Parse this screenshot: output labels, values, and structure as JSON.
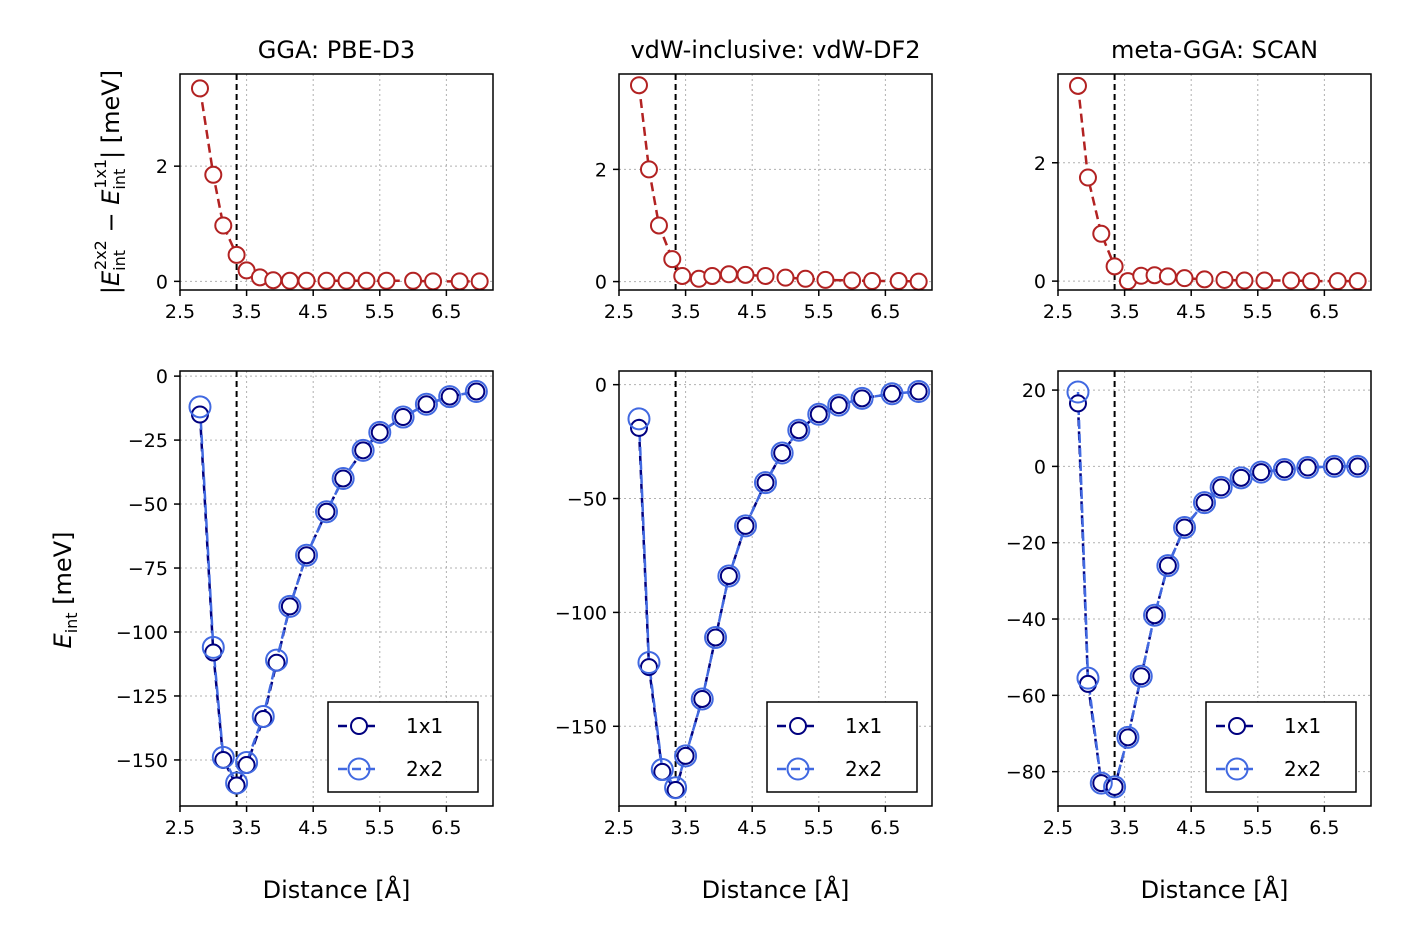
{
  "colors": {
    "diff": "#b22222",
    "s1x1": "#00007f",
    "s2x2": "#4169e1",
    "grid": "#b0b0b0",
    "vline": "#000000"
  },
  "figure": {
    "ylabel_top": "|E_int^2x2 − E_int^1x1| [meV]",
    "ylabel_bottom": "E_int [meV]",
    "xlabel": "Distance [Å]"
  },
  "chart_data": [
    {
      "type": "line",
      "panel": "top",
      "title": "GGA: PBE-D3",
      "xlabel": "",
      "ylabel": "|E_int^2x2 − E_int^1x1| [meV]",
      "xlim": [
        2.5,
        7.2
      ],
      "ylim": [
        -0.15,
        3.6
      ],
      "xticks": [
        2.5,
        3.5,
        4.5,
        5.5,
        6.5
      ],
      "xtick_labels": [
        "2.5",
        "3.5",
        "4.5",
        "5.5",
        "6.5"
      ],
      "yticks": [
        0,
        2
      ],
      "ytick_labels": [
        "0",
        "2"
      ],
      "grid": true,
      "vline": 3.35,
      "series": [
        {
          "x": [
            2.8,
            3.0,
            3.15,
            3.35,
            3.5,
            3.7,
            3.9,
            4.15,
            4.4,
            4.7,
            5.0,
            5.3,
            5.6,
            6.0,
            6.3,
            6.7,
            7.0
          ],
          "y": [
            3.35,
            1.85,
            0.97,
            0.46,
            0.19,
            0.07,
            0.02,
            0.01,
            0.01,
            0.01,
            0.01,
            0.01,
            0.01,
            0.01,
            0.0,
            0.0,
            0.0
          ]
        }
      ]
    },
    {
      "type": "line",
      "panel": "top",
      "title": "vdW-inclusive: vdW-DF2",
      "xlabel": "",
      "ylabel": "",
      "xlim": [
        2.5,
        7.2
      ],
      "ylim": [
        -0.15,
        3.7
      ],
      "xticks": [
        2.5,
        3.5,
        4.5,
        5.5,
        6.5
      ],
      "xtick_labels": [
        "2.5",
        "3.5",
        "4.5",
        "5.5",
        "6.5"
      ],
      "yticks": [
        0,
        2
      ],
      "ytick_labels": [
        "0",
        "2"
      ],
      "grid": true,
      "vline": 3.35,
      "series": [
        {
          "x": [
            2.8,
            2.95,
            3.1,
            3.3,
            3.45,
            3.7,
            3.9,
            4.15,
            4.4,
            4.7,
            5.0,
            5.3,
            5.6,
            6.0,
            6.3,
            6.7,
            7.0
          ],
          "y": [
            3.5,
            2.0,
            1.0,
            0.4,
            0.1,
            0.05,
            0.1,
            0.13,
            0.12,
            0.1,
            0.07,
            0.05,
            0.03,
            0.02,
            0.01,
            0.01,
            0.0
          ]
        }
      ]
    },
    {
      "type": "line",
      "panel": "top",
      "title": "meta-GGA: SCAN",
      "xlabel": "",
      "ylabel": "",
      "xlim": [
        2.5,
        7.2
      ],
      "ylim": [
        -0.15,
        3.5
      ],
      "xticks": [
        2.5,
        3.5,
        4.5,
        5.5,
        6.5
      ],
      "xtick_labels": [
        "2.5",
        "3.5",
        "4.5",
        "5.5",
        "6.5"
      ],
      "yticks": [
        0,
        2
      ],
      "ytick_labels": [
        "0",
        "2"
      ],
      "grid": true,
      "vline": 3.35,
      "series": [
        {
          "x": [
            2.8,
            2.95,
            3.15,
            3.35,
            3.55,
            3.75,
            3.95,
            4.15,
            4.4,
            4.7,
            5.0,
            5.3,
            5.6,
            6.0,
            6.3,
            6.7,
            7.0
          ],
          "y": [
            3.3,
            1.75,
            0.8,
            0.25,
            0.0,
            0.09,
            0.1,
            0.08,
            0.05,
            0.03,
            0.02,
            0.01,
            0.01,
            0.01,
            0.0,
            0.0,
            0.0
          ]
        }
      ]
    },
    {
      "type": "line",
      "panel": "bottom",
      "title": "",
      "xlabel": "Distance [Å]",
      "ylabel": "E_int [meV]",
      "xlim": [
        2.5,
        7.2
      ],
      "ylim": [
        -168,
        2
      ],
      "xticks": [
        2.5,
        3.5,
        4.5,
        5.5,
        6.5
      ],
      "xtick_labels": [
        "2.5",
        "3.5",
        "4.5",
        "5.5",
        "6.5"
      ],
      "yticks": [
        0,
        -25,
        -50,
        -75,
        -100,
        -125,
        -150
      ],
      "ytick_labels": [
        "0",
        "−25",
        "−50",
        "−75",
        "−100",
        "−125",
        "−150"
      ],
      "grid": true,
      "vline": 3.35,
      "legend": "lower-right",
      "series": [
        {
          "name": "1x1",
          "x": [
            2.8,
            3.0,
            3.15,
            3.35,
            3.5,
            3.75,
            3.95,
            4.15,
            4.4,
            4.7,
            4.95,
            5.25,
            5.5,
            5.85,
            6.2,
            6.55,
            6.95
          ],
          "y": [
            -15,
            -108,
            -150,
            -160,
            -152,
            -134,
            -112,
            -90,
            -70,
            -53,
            -40,
            -29,
            -22,
            -16,
            -11,
            -8,
            -6
          ]
        },
        {
          "name": "2x2",
          "x": [
            2.8,
            3.0,
            3.15,
            3.35,
            3.5,
            3.75,
            3.95,
            4.15,
            4.4,
            4.7,
            4.95,
            5.25,
            5.5,
            5.85,
            6.2,
            6.55,
            6.95
          ],
          "y": [
            -12,
            -106,
            -149,
            -159,
            -151,
            -133,
            -111,
            -90,
            -70,
            -53,
            -40,
            -29,
            -22,
            -16,
            -11,
            -8,
            -6
          ]
        }
      ]
    },
    {
      "type": "line",
      "panel": "bottom",
      "title": "",
      "xlabel": "Distance [Å]",
      "ylabel": "",
      "xlim": [
        2.5,
        7.2
      ],
      "ylim": [
        -185,
        6
      ],
      "xticks": [
        2.5,
        3.5,
        4.5,
        5.5,
        6.5
      ],
      "xtick_labels": [
        "2.5",
        "3.5",
        "4.5",
        "5.5",
        "6.5"
      ],
      "yticks": [
        0,
        -50,
        -100,
        -150
      ],
      "ytick_labels": [
        "0",
        "−50",
        "−100",
        "−150"
      ],
      "grid": true,
      "vline": 3.35,
      "legend": "lower-right",
      "series": [
        {
          "name": "1x1",
          "x": [
            2.8,
            2.95,
            3.15,
            3.35,
            3.5,
            3.75,
            3.95,
            4.15,
            4.4,
            4.7,
            4.95,
            5.2,
            5.5,
            5.8,
            6.15,
            6.6,
            7.0
          ],
          "y": [
            -19,
            -124,
            -170,
            -178,
            -163,
            -138,
            -111,
            -84,
            -62,
            -43,
            -30,
            -20,
            -13,
            -9,
            -6,
            -4,
            -3
          ]
        },
        {
          "name": "2x2",
          "x": [
            2.8,
            2.95,
            3.15,
            3.35,
            3.5,
            3.75,
            3.95,
            4.15,
            4.4,
            4.7,
            4.95,
            5.2,
            5.5,
            5.8,
            6.15,
            6.6,
            7.0
          ],
          "y": [
            -15,
            -122,
            -169,
            -177,
            -163,
            -138,
            -111,
            -84,
            -62,
            -43,
            -30,
            -20,
            -13,
            -9,
            -6,
            -4,
            -3
          ]
        }
      ]
    },
    {
      "type": "line",
      "panel": "bottom",
      "title": "",
      "xlabel": "Distance [Å]",
      "ylabel": "",
      "xlim": [
        2.5,
        7.2
      ],
      "ylim": [
        -89,
        25
      ],
      "xticks": [
        2.5,
        3.5,
        4.5,
        5.5,
        6.5
      ],
      "xtick_labels": [
        "2.5",
        "3.5",
        "4.5",
        "5.5",
        "6.5"
      ],
      "yticks": [
        20,
        0,
        -20,
        -40,
        -60,
        -80
      ],
      "ytick_labels": [
        "20",
        "0",
        "−20",
        "−40",
        "−60",
        "−80"
      ],
      "grid": true,
      "vline": 3.35,
      "legend": "lower-right",
      "series": [
        {
          "name": "1x1",
          "x": [
            2.8,
            2.95,
            3.15,
            3.35,
            3.55,
            3.75,
            3.95,
            4.15,
            4.4,
            4.7,
            4.95,
            5.25,
            5.55,
            5.9,
            6.25,
            6.65,
            7.0
          ],
          "y": [
            16.5,
            -57,
            -83,
            -84,
            -71,
            -55,
            -39,
            -26,
            -16,
            -9.5,
            -5.5,
            -3,
            -1.5,
            -0.8,
            -0.3,
            0.0,
            0.0
          ]
        },
        {
          "name": "2x2",
          "x": [
            2.8,
            2.95,
            3.15,
            3.35,
            3.55,
            3.75,
            3.95,
            4.15,
            4.4,
            4.7,
            4.95,
            5.25,
            5.55,
            5.9,
            6.25,
            6.65,
            7.0
          ],
          "y": [
            19.5,
            -55.5,
            -83,
            -84,
            -71,
            -55,
            -39,
            -26,
            -16,
            -9.5,
            -5.5,
            -3,
            -1.5,
            -0.8,
            -0.3,
            0.0,
            0.0
          ]
        }
      ]
    }
  ]
}
